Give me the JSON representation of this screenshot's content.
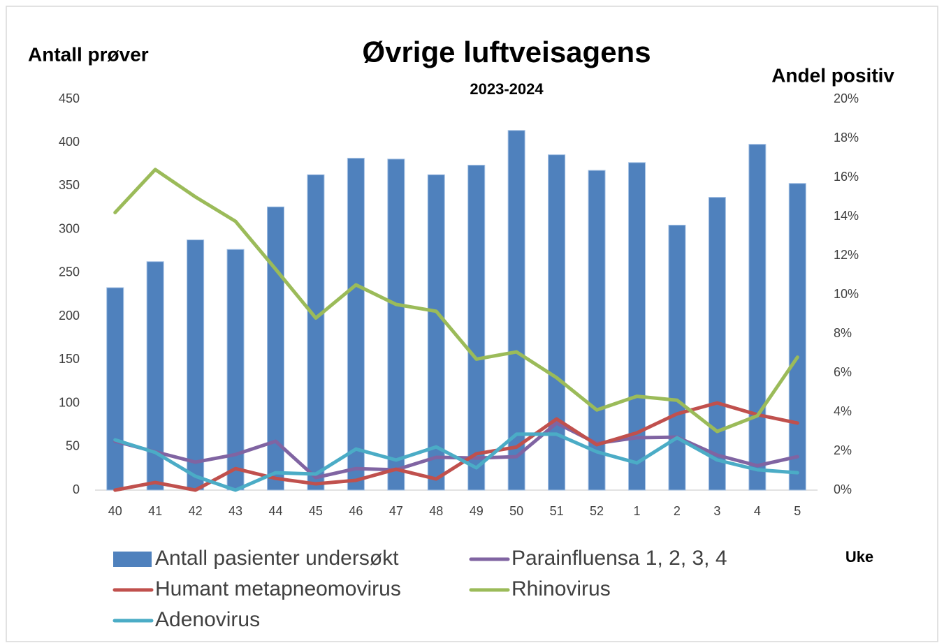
{
  "chart_data": {
    "type": "bar",
    "title": "Øvrige luftveisagens",
    "subtitle": "2023-2024",
    "y_label": "Antall prøver",
    "y2_label": "Andel positiv",
    "x_label": "Uke",
    "categories": [
      "40",
      "41",
      "42",
      "43",
      "44",
      "45",
      "46",
      "47",
      "48",
      "49",
      "50",
      "51",
      "52",
      "1",
      "2",
      "3",
      "4",
      "5"
    ],
    "ylim": [
      0,
      450
    ],
    "yticks": [
      0,
      50,
      100,
      150,
      200,
      250,
      300,
      350,
      400,
      450
    ],
    "y2lim": [
      0,
      20
    ],
    "y2ticks": [
      {
        "value": 0,
        "label": "0%"
      },
      {
        "value": 2,
        "label": "2%"
      },
      {
        "value": 4,
        "label": "4%"
      },
      {
        "value": 6,
        "label": "6%"
      },
      {
        "value": 8,
        "label": "8%"
      },
      {
        "value": 10,
        "label": "10%"
      },
      {
        "value": 12,
        "label": "12%"
      },
      {
        "value": 14,
        "label": "14%"
      },
      {
        "value": 16,
        "label": "16%"
      },
      {
        "value": 18,
        "label": "18%"
      },
      {
        "value": 20,
        "label": "20%"
      }
    ],
    "legend": "bottom",
    "series": [
      {
        "name": "Antall pasienter undersøkt",
        "type": "bar",
        "color": "#4f81bd",
        "values": [
          233,
          263,
          288,
          277,
          326,
          363,
          382,
          381,
          363,
          374,
          414,
          386,
          368,
          377,
          305,
          337,
          398,
          353
        ]
      },
      {
        "name": "Parainfluensa 1, 2, 3, 4",
        "type": "line",
        "axis": "y2",
        "color": "#8064a2",
        "values": [
          2.5,
          1.96,
          1.43,
          1.82,
          2.5,
          0.64,
          1.1,
          1.04,
          1.68,
          1.64,
          1.71,
          3.43,
          2.39,
          2.68,
          2.71,
          1.79,
          1.25,
          1.71
        ]
      },
      {
        "name": "Humant metapneomovirus",
        "type": "line",
        "axis": "y2",
        "color": "#c0504d",
        "values": [
          0,
          0.39,
          0,
          1.1,
          0.6,
          0.32,
          0.5,
          1.07,
          0.57,
          1.86,
          2.2,
          3.64,
          2.32,
          2.93,
          3.9,
          4.46,
          3.86,
          3.43
        ]
      },
      {
        "name": "Rhinovirus",
        "type": "line",
        "axis": "y2",
        "color": "#9bbb59",
        "values": [
          14.2,
          16.4,
          15.0,
          13.75,
          11.3,
          8.8,
          10.5,
          9.5,
          9.15,
          6.7,
          7.07,
          5.75,
          4.1,
          4.8,
          4.6,
          3.0,
          3.8,
          6.8
        ]
      },
      {
        "name": "Adenovirus",
        "type": "line",
        "axis": "y2",
        "color": "#4bacc6",
        "values": [
          2.57,
          1.93,
          0.71,
          0,
          0.89,
          0.82,
          2.1,
          1.54,
          2.21,
          1.14,
          2.86,
          2.86,
          1.96,
          1.39,
          2.68,
          1.54,
          1.04,
          0.89
        ]
      }
    ]
  }
}
